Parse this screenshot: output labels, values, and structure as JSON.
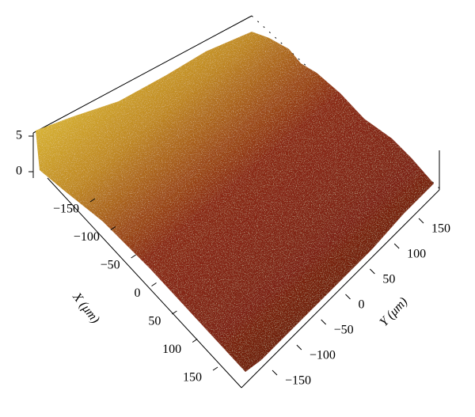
{
  "chart_data": {
    "type": "surface",
    "xlabel": "X (μm)",
    "ylabel": "Y (μm)",
    "xlim": [
      -150,
      150
    ],
    "ylim": [
      -150,
      150
    ],
    "zlim": [
      0,
      5
    ],
    "xticks": [
      {
        "value": -150,
        "label": "−150"
      },
      {
        "value": -100,
        "label": "−100"
      },
      {
        "value": -50,
        "label": "−50"
      },
      0,
      50,
      100,
      150
    ],
    "yticks": [
      {
        "value": -150,
        "label": "−150"
      },
      {
        "value": -100,
        "label": "−100"
      },
      {
        "value": -50,
        "label": "−50"
      },
      0,
      50,
      100,
      150
    ],
    "zticks": [
      0,
      5
    ]
  }
}
